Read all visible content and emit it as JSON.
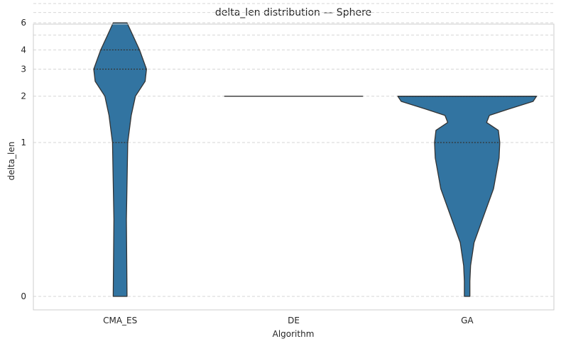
{
  "chart_data": {
    "type": "violin",
    "title": "delta_len distribution — Sphere",
    "xlabel": "Algorithm",
    "ylabel": "delta_len",
    "categories": [
      "CMA_ES",
      "DE",
      "GA"
    ],
    "yscale": "symlog",
    "yticks": [
      0,
      1,
      2,
      3,
      4,
      6
    ],
    "grid": true,
    "grid_extra_y": [
      5,
      7,
      8
    ],
    "ylim": [
      0,
      8.5
    ],
    "violins": [
      {
        "category": "CMA_ES",
        "min": 0,
        "max": 6,
        "quartiles": [
          1,
          3,
          4
        ],
        "profile": [
          [
            0,
            0.1
          ],
          [
            0.5,
            0.09
          ],
          [
            1.0,
            0.11
          ],
          [
            1.5,
            0.16
          ],
          [
            2.0,
            0.22
          ],
          [
            2.5,
            0.36
          ],
          [
            3.0,
            0.38
          ],
          [
            4.0,
            0.28
          ],
          [
            5.0,
            0.18
          ],
          [
            6.0,
            0.1
          ]
        ]
      },
      {
        "category": "DE",
        "min": 2,
        "max": 2,
        "quartiles": [
          2,
          2,
          2
        ],
        "profile": [
          [
            2,
            1.0
          ]
        ]
      },
      {
        "category": "GA",
        "min": 0,
        "max": 2,
        "quartiles": [
          1,
          2,
          2
        ],
        "profile": [
          [
            0,
            0.04
          ],
          [
            0.1,
            0.04
          ],
          [
            0.2,
            0.05
          ],
          [
            0.35,
            0.1
          ],
          [
            0.5,
            0.22
          ],
          [
            0.7,
            0.38
          ],
          [
            0.9,
            0.46
          ],
          [
            1.0,
            0.47
          ],
          [
            1.2,
            0.45
          ],
          [
            1.35,
            0.28
          ],
          [
            1.5,
            0.32
          ],
          [
            1.65,
            0.6
          ],
          [
            1.85,
            0.95
          ],
          [
            2.0,
            1.0
          ]
        ]
      }
    ]
  },
  "colors": {
    "violin_fill": "#3274a1",
    "violin_edge": "#333333",
    "grid": "#d6d6d6",
    "frame": "#cccccc"
  }
}
